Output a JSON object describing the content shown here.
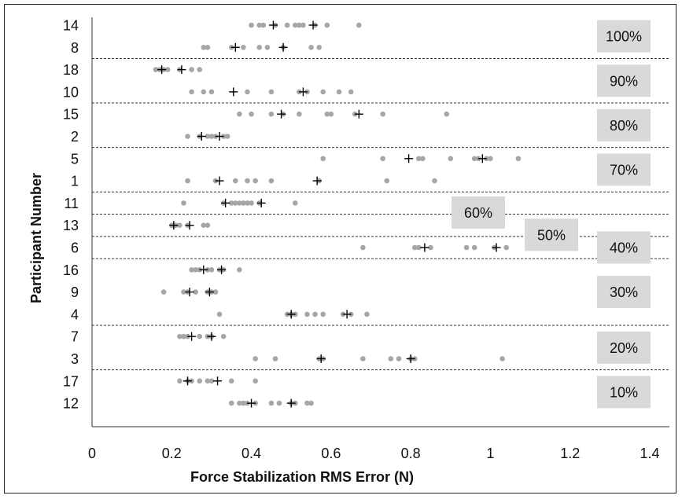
{
  "chart_data": {
    "type": "scatter",
    "title": "",
    "xlabel": "Force Stabilization RMS Error (N)",
    "ylabel": "Participant Number",
    "xlim": [
      0,
      1.4
    ],
    "xticks": [
      "0",
      "0.2",
      "0.4",
      "0.6",
      "0.8",
      "1",
      "1.2",
      "1.4"
    ],
    "grid": false,
    "colors": {
      "trial_point": "#a6a6a6",
      "mean_marker": "#000000",
      "label_box": "#d9d9d9",
      "separator": "#333333"
    },
    "rows": [
      {
        "participant": "14",
        "trials": [
          0.4,
          0.42,
          0.43,
          0.46,
          0.49,
          0.51,
          0.52,
          0.53,
          0.56,
          0.59,
          0.67
        ],
        "means": [
          0.455,
          0.555
        ]
      },
      {
        "participant": "8",
        "trials": [
          0.28,
          0.29,
          0.35,
          0.38,
          0.42,
          0.44,
          0.48,
          0.55,
          0.57
        ],
        "means": [
          0.36,
          0.48
        ]
      },
      {
        "participant": "18",
        "trials": [
          0.16,
          0.17,
          0.18,
          0.19,
          0.22,
          0.25,
          0.27
        ],
        "means": [
          0.175,
          0.225
        ]
      },
      {
        "participant": "10",
        "trials": [
          0.25,
          0.28,
          0.3,
          0.39,
          0.45,
          0.52,
          0.54,
          0.58,
          0.62,
          0.65
        ],
        "means": [
          0.355,
          0.53
        ]
      },
      {
        "participant": "15",
        "trials": [
          0.37,
          0.4,
          0.45,
          0.48,
          0.52,
          0.59,
          0.6,
          0.66,
          0.73,
          0.89
        ],
        "means": [
          0.475,
          0.67
        ]
      },
      {
        "participant": "2",
        "trials": [
          0.24,
          0.27,
          0.29,
          0.3,
          0.31,
          0.33,
          0.34
        ],
        "means": [
          0.275,
          0.32
        ]
      },
      {
        "participant": "5",
        "trials": [
          0.58,
          0.73,
          0.82,
          0.83,
          0.9,
          0.96,
          0.97,
          0.99,
          1.0,
          1.07
        ],
        "means": [
          0.795,
          0.98
        ]
      },
      {
        "participant": "1",
        "trials": [
          0.24,
          0.31,
          0.36,
          0.39,
          0.41,
          0.45,
          0.57,
          0.74,
          0.86
        ],
        "means": [
          0.32,
          0.565
        ]
      },
      {
        "participant": "11",
        "trials": [
          0.23,
          0.33,
          0.35,
          0.36,
          0.37,
          0.38,
          0.39,
          0.4,
          0.42,
          0.51
        ],
        "means": [
          0.335,
          0.425
        ]
      },
      {
        "participant": "13",
        "trials": [
          0.2,
          0.21,
          0.22,
          0.24,
          0.28,
          0.29
        ],
        "means": [
          0.205,
          0.245
        ]
      },
      {
        "participant": "6",
        "trials": [
          0.68,
          0.81,
          0.82,
          0.85,
          0.94,
          0.96,
          1.01,
          1.04,
          1.21
        ],
        "means": [
          0.835,
          1.015
        ]
      },
      {
        "participant": "16",
        "trials": [
          0.25,
          0.26,
          0.27,
          0.29,
          0.3,
          0.32,
          0.33,
          0.37
        ],
        "means": [
          0.28,
          0.325
        ]
      },
      {
        "participant": "9",
        "trials": [
          0.18,
          0.23,
          0.24,
          0.26,
          0.29,
          0.3,
          0.31
        ],
        "means": [
          0.245,
          0.295
        ]
      },
      {
        "participant": "4",
        "trials": [
          0.32,
          0.49,
          0.5,
          0.51,
          0.54,
          0.56,
          0.58,
          0.63,
          0.65,
          0.69
        ],
        "means": [
          0.5,
          0.64
        ]
      },
      {
        "participant": "7",
        "trials": [
          0.22,
          0.23,
          0.24,
          0.27,
          0.29,
          0.3,
          0.33
        ],
        "means": [
          0.25,
          0.3
        ]
      },
      {
        "participant": "3",
        "trials": [
          0.41,
          0.46,
          0.57,
          0.58,
          0.68,
          0.75,
          0.77,
          0.8,
          0.81,
          1.03
        ],
        "means": [
          0.575,
          0.8
        ]
      },
      {
        "participant": "17",
        "trials": [
          0.22,
          0.24,
          0.25,
          0.27,
          0.29,
          0.3,
          0.35,
          0.41
        ],
        "means": [
          0.24,
          0.315
        ]
      },
      {
        "participant": "12",
        "trials": [
          0.35,
          0.37,
          0.38,
          0.39,
          0.41,
          0.45,
          0.47,
          0.5,
          0.51,
          0.54,
          0.55
        ],
        "means": [
          0.4,
          0.5
        ]
      }
    ],
    "groups": [
      {
        "label": "100%",
        "rows": [
          0,
          1
        ]
      },
      {
        "label": "90%",
        "rows": [
          2,
          3
        ]
      },
      {
        "label": "80%",
        "rows": [
          4,
          5
        ]
      },
      {
        "label": "70%",
        "rows": [
          6,
          7
        ]
      },
      {
        "label": "60%",
        "rows": [
          8
        ]
      },
      {
        "label": "50%",
        "rows": [
          9
        ]
      },
      {
        "label": "40%",
        "rows": [
          10
        ]
      },
      {
        "label": "30%",
        "rows": [
          11,
          12,
          13
        ]
      },
      {
        "label": "20%",
        "rows": [
          14,
          15
        ]
      },
      {
        "label": "10%",
        "rows": [
          16,
          17
        ]
      }
    ]
  }
}
